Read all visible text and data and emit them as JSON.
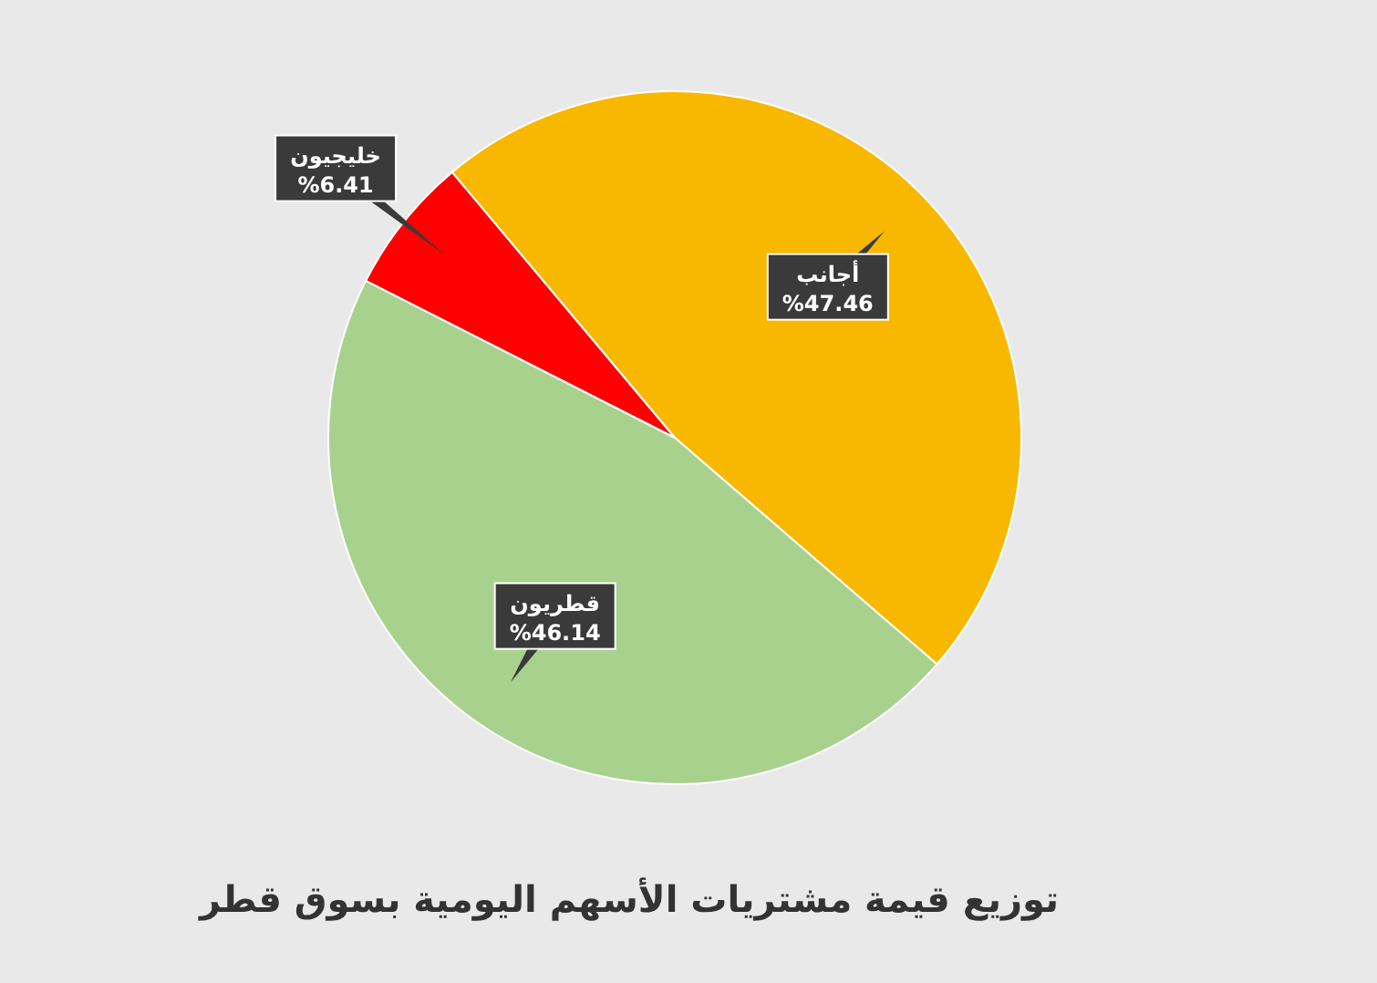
{
  "chart_data": {
    "type": "pie",
    "title": "توزيع قيمة مشتريات الأسهم اليومية بسوق قطر",
    "categories": [
      "أجانب",
      "قطريون",
      "خليجيون"
    ],
    "values": [
      47.46,
      46.14,
      6.41
    ],
    "colors": [
      "#f9b800",
      "#a9d18e",
      "#ff0000"
    ],
    "value_labels": [
      "%47.46",
      "%46.14",
      "%6.41"
    ]
  }
}
